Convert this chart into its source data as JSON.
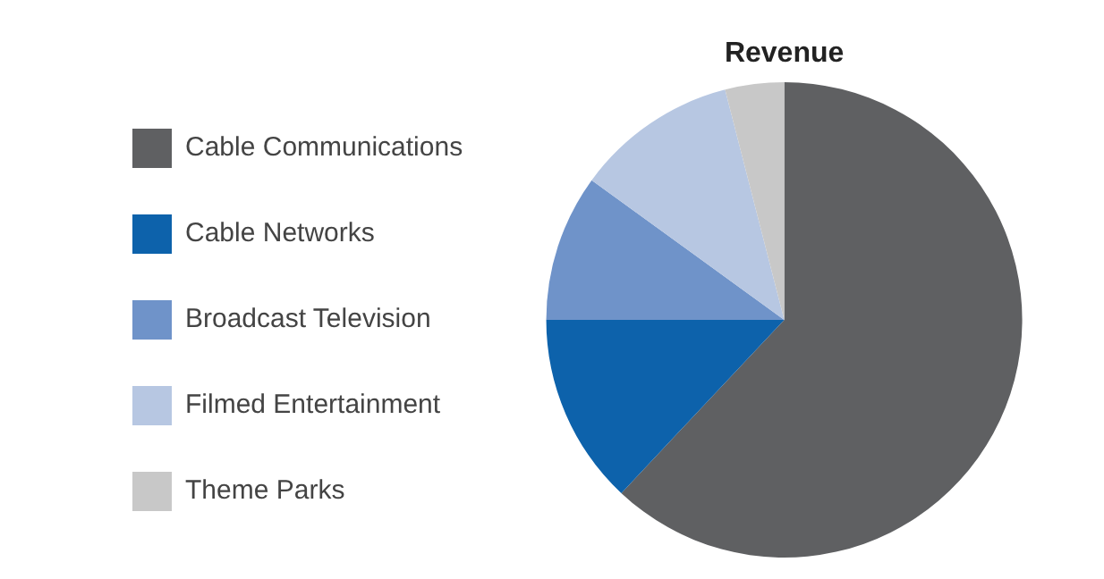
{
  "chart_data": {
    "type": "pie",
    "title": "Revenue",
    "categories": [
      "Cable Communications",
      "Cable Networks",
      "Broadcast Television",
      "Filmed Entertainment",
      "Theme Parks"
    ],
    "values": [
      62,
      13,
      10,
      11,
      4
    ],
    "colors": [
      "#5f6062",
      "#0d62ab",
      "#6f93c9",
      "#b7c7e2",
      "#c8c8c8"
    ],
    "legend": "left"
  }
}
